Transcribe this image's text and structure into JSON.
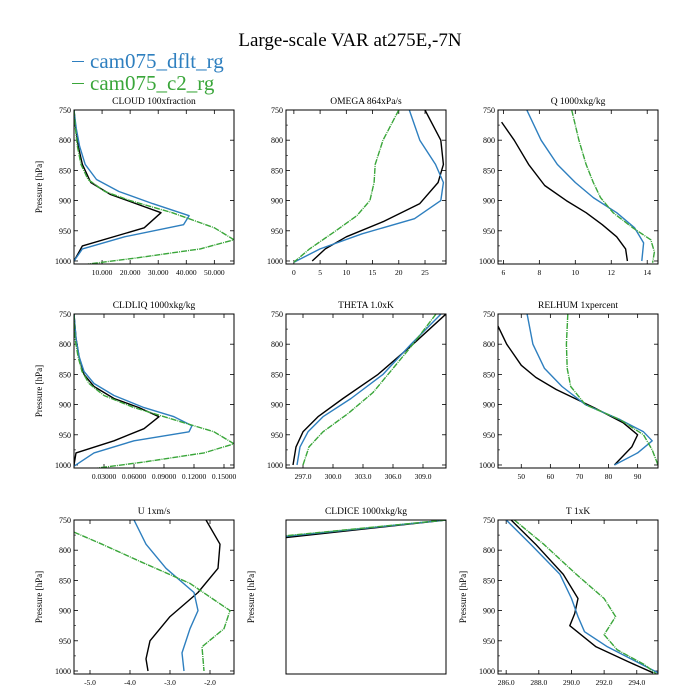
{
  "title": "Large-scale VAR at275E,-7N",
  "legend": [
    {
      "name": "cam075_dflt_rg",
      "color": "#2e7fbf"
    },
    {
      "name": "cam075_c2_rg",
      "color": "#3aa63a"
    }
  ],
  "chart_data": [
    {
      "type": "line",
      "title": "CLOUD  100xfraction",
      "xlabel": "",
      "ylabel": "Pressure [hPa]",
      "xlim": [
        0,
        57000
      ],
      "ylim": [
        1005,
        750
      ],
      "grid": false,
      "xticks": [
        10000,
        20000,
        30000,
        40000,
        50000
      ],
      "xticklabels": [
        "10.000",
        "20.000",
        "30.000",
        "40.000",
        "50.000"
      ],
      "yticks": [
        750,
        800,
        850,
        900,
        950,
        1000
      ],
      "series": [
        {
          "name": "",
          "color": "#000000",
          "x": [
            0,
            600,
            1500,
            3000,
            6000,
            13000,
            22000,
            31000,
            25000,
            3000,
            0
          ],
          "y": [
            750,
            780,
            810,
            840,
            870,
            890,
            905,
            920,
            945,
            975,
            1000
          ]
        },
        {
          "name": "cam075_dflt_rg",
          "color": "#2e7fbf",
          "x": [
            0,
            800,
            2000,
            4000,
            8000,
            16000,
            28000,
            41000,
            39000,
            18000,
            3000,
            0
          ],
          "y": [
            750,
            780,
            810,
            840,
            865,
            885,
            905,
            925,
            940,
            960,
            980,
            1000
          ]
        },
        {
          "name": "cam075_c2_rg",
          "color": "#3aa63a",
          "x": [
            0,
            500,
            1200,
            2500,
            5000,
            11000,
            20000,
            35000,
            50000,
            57000,
            45000,
            22000,
            5000
          ],
          "y": [
            750,
            780,
            810,
            840,
            865,
            885,
            900,
            920,
            945,
            965,
            980,
            995,
            1005
          ]
        }
      ]
    },
    {
      "type": "line",
      "title": "OMEGA  864xPa/s",
      "xlabel": "",
      "ylabel": "",
      "xlim": [
        -1.5,
        29
      ],
      "ylim": [
        1005,
        750
      ],
      "grid": false,
      "xticks": [
        0,
        5,
        10,
        15,
        20,
        25
      ],
      "xticklabels": [
        "0",
        "5",
        "10",
        "15",
        "20",
        "25"
      ],
      "yticks": [
        750,
        800,
        850,
        900,
        950,
        1000
      ],
      "series": [
        {
          "name": "",
          "color": "#000000",
          "x": [
            25,
            28,
            28.5,
            27.5,
            24,
            17,
            10,
            6,
            3.5
          ],
          "y": [
            750,
            800,
            840,
            870,
            905,
            935,
            960,
            980,
            1000
          ]
        },
        {
          "name": "cam075_dflt_rg",
          "color": "#2e7fbf",
          "x": [
            22,
            24,
            27,
            28.5,
            28,
            23,
            13,
            5,
            0
          ],
          "y": [
            750,
            800,
            840,
            870,
            900,
            930,
            955,
            980,
            1002
          ]
        },
        {
          "name": "cam075_c2_rg",
          "color": "#3aa63a",
          "x": [
            20,
            17,
            15.5,
            15.3,
            14.5,
            12,
            8,
            3,
            0
          ],
          "y": [
            750,
            800,
            840,
            870,
            900,
            925,
            950,
            980,
            1002
          ]
        }
      ]
    },
    {
      "type": "line",
      "title": "Q  1000xkg/kg",
      "xlabel": "",
      "ylabel": "",
      "xlim": [
        5.7,
        14.6
      ],
      "ylim": [
        1005,
        750
      ],
      "grid": false,
      "xticks": [
        6,
        8,
        10,
        12,
        14
      ],
      "xticklabels": [
        "6",
        "8",
        "10",
        "12",
        "14"
      ],
      "yticks": [
        750,
        800,
        850,
        900,
        950,
        1000
      ],
      "series": [
        {
          "name": "",
          "color": "#000000",
          "x": [
            5.9,
            6.6,
            7.4,
            8.3,
            9.5,
            10.6,
            11.5,
            12.3,
            12.8,
            12.9
          ],
          "y": [
            770,
            800,
            840,
            875,
            900,
            920,
            940,
            960,
            980,
            1000
          ]
        },
        {
          "name": "cam075_dflt_rg",
          "color": "#2e7fbf",
          "x": [
            7.3,
            8.1,
            9.0,
            10.0,
            11.0,
            12.3,
            13.3,
            13.8,
            13.7
          ],
          "y": [
            750,
            800,
            840,
            870,
            895,
            920,
            945,
            970,
            1000
          ]
        },
        {
          "name": "cam075_c2_rg",
          "color": "#3aa63a",
          "x": [
            9.8,
            10.2,
            10.6,
            11.0,
            11.4,
            12.1,
            13.2,
            14.2,
            14.4,
            14.3
          ],
          "y": [
            750,
            800,
            840,
            870,
            895,
            920,
            945,
            965,
            985,
            1003
          ]
        }
      ]
    },
    {
      "type": "line",
      "title": "CLDLIQ  1000xkg/kg",
      "xlabel": "",
      "ylabel": "Pressure [hPa]",
      "xlim": [
        0,
        0.16
      ],
      "ylim": [
        1005,
        750
      ],
      "grid": false,
      "xticks": [
        0.03,
        0.06,
        0.09,
        0.12,
        0.15
      ],
      "xticklabels": [
        "0.03000",
        "0.06000",
        "0.09000",
        "0.12000",
        "0.15000"
      ],
      "yticks": [
        750,
        800,
        850,
        900,
        950,
        1000
      ],
      "series": [
        {
          "name": "",
          "color": "#000000",
          "x": [
            0,
            0.002,
            0.005,
            0.01,
            0.02,
            0.04,
            0.065,
            0.085,
            0.07,
            0.04,
            0.002,
            0
          ],
          "y": [
            750,
            790,
            820,
            850,
            870,
            890,
            905,
            920,
            940,
            960,
            980,
            1000
          ]
        },
        {
          "name": "cam075_dflt_rg",
          "color": "#2e7fbf",
          "x": [
            0,
            0.002,
            0.005,
            0.01,
            0.02,
            0.04,
            0.07,
            0.1,
            0.118,
            0.115,
            0.06,
            0.02,
            0
          ],
          "y": [
            750,
            790,
            820,
            845,
            865,
            885,
            905,
            920,
            935,
            945,
            960,
            980,
            1002
          ]
        },
        {
          "name": "cam075_c2_rg",
          "color": "#3aa63a",
          "x": [
            0,
            0.001,
            0.004,
            0.008,
            0.015,
            0.03,
            0.06,
            0.1,
            0.14,
            0.16,
            0.13,
            0.07,
            0.015
          ],
          "y": [
            750,
            790,
            820,
            845,
            865,
            885,
            905,
            925,
            945,
            965,
            980,
            995,
            1007
          ]
        }
      ]
    },
    {
      "type": "line",
      "title": "THETA  1.0xK",
      "xlabel": "",
      "ylabel": "",
      "xlim": [
        295.3,
        311.3
      ],
      "ylim": [
        1005,
        750
      ],
      "grid": false,
      "xticks": [
        297,
        300,
        303,
        306,
        309
      ],
      "xticklabels": [
        "297.0",
        "300.0",
        "303.0",
        "306.0",
        "309.0"
      ],
      "yticks": [
        750,
        800,
        850,
        900,
        950,
        1000
      ],
      "series": [
        {
          "name": "",
          "color": "#000000",
          "x": [
            311.3,
            308.0,
            304.5,
            301.0,
            298.5,
            297.0,
            296.3,
            296.0
          ],
          "y": [
            750,
            800,
            850,
            890,
            920,
            945,
            970,
            1000
          ]
        },
        {
          "name": "cam075_dflt_rg",
          "color": "#2e7fbf",
          "x": [
            310.8,
            307.8,
            305.0,
            301.8,
            299.0,
            297.5,
            296.7,
            296.4
          ],
          "y": [
            750,
            800,
            850,
            890,
            920,
            945,
            970,
            1000
          ]
        },
        {
          "name": "cam075_c2_rg",
          "color": "#3aa63a",
          "x": [
            310.3,
            308.0,
            306.0,
            304.0,
            301.5,
            299.0,
            297.6,
            297.0
          ],
          "y": [
            750,
            800,
            840,
            880,
            915,
            945,
            970,
            1000
          ]
        }
      ]
    },
    {
      "type": "line",
      "title": "RELHUM  1xpercent",
      "xlabel": "",
      "ylabel": "",
      "xlim": [
        42,
        97
      ],
      "ylim": [
        1005,
        750
      ],
      "grid": false,
      "xticks": [
        50,
        60,
        70,
        80,
        90
      ],
      "xticklabels": [
        "50",
        "60",
        "70",
        "80",
        "90"
      ],
      "yticks": [
        750,
        800,
        850,
        900,
        950,
        1000
      ],
      "series": [
        {
          "name": "",
          "color": "#000000",
          "x": [
            42,
            45,
            50,
            55,
            62,
            75,
            85,
            90,
            88,
            82
          ],
          "y": [
            770,
            800,
            835,
            855,
            875,
            905,
            930,
            950,
            970,
            1000
          ]
        },
        {
          "name": "cam075_dflt_rg",
          "color": "#2e7fbf",
          "x": [
            52,
            54,
            58,
            64,
            72,
            84,
            92,
            95,
            90,
            82
          ],
          "y": [
            750,
            800,
            840,
            870,
            900,
            925,
            945,
            960,
            980,
            1000
          ]
        },
        {
          "name": "cam075_c2_rg",
          "color": "#3aa63a",
          "x": [
            66,
            65.5,
            65.8,
            67,
            72,
            84,
            92,
            95,
            97
          ],
          "y": [
            750,
            800,
            840,
            870,
            900,
            925,
            950,
            975,
            1000
          ]
        }
      ]
    },
    {
      "type": "line",
      "title": "U  1xm/s",
      "xlabel": "",
      "ylabel": "Pressure [hPa]",
      "xlim": [
        -5.4,
        -1.4
      ],
      "ylim": [
        1005,
        750
      ],
      "grid": false,
      "xticks": [
        -5,
        -4,
        -3,
        -2
      ],
      "xticklabels": [
        "-5.0",
        "-4.0",
        "-3.0",
        "-2.0"
      ],
      "yticks": [
        750,
        800,
        850,
        900,
        950,
        1000
      ],
      "series": [
        {
          "name": "",
          "color": "#000000",
          "x": [
            -2.1,
            -1.75,
            -1.8,
            -2.3,
            -3.0,
            -3.5,
            -3.6,
            -3.55
          ],
          "y": [
            750,
            790,
            830,
            870,
            910,
            950,
            980,
            1000
          ]
        },
        {
          "name": "cam075_dflt_rg",
          "color": "#2e7fbf",
          "x": [
            -3.9,
            -3.6,
            -3.1,
            -2.4,
            -2.3,
            -2.5,
            -2.7,
            -2.65
          ],
          "y": [
            750,
            790,
            830,
            870,
            900,
            930,
            970,
            1000
          ]
        },
        {
          "name": "cam075_c2_rg",
          "color": "#3aa63a",
          "x": [
            -5.4,
            -4.7,
            -3.7,
            -2.5,
            -1.5,
            -1.65,
            -2.2,
            -2.15
          ],
          "y": [
            770,
            790,
            820,
            855,
            900,
            930,
            960,
            1000
          ]
        }
      ]
    },
    {
      "type": "line",
      "title": "CLDICE  1000xkg/kg",
      "xlabel": "",
      "ylabel": "Pressure [hPa]",
      "xlim": [
        0,
        1
      ],
      "ylim": [
        1005,
        750
      ],
      "grid": false,
      "xticks": [],
      "xticklabels": [],
      "yticks": [],
      "series": [
        {
          "name": "",
          "color": "#000000",
          "x": [
            1,
            0
          ],
          "y": [
            750,
            779
          ]
        },
        {
          "name": "cam075_dflt_rg",
          "color": "#2e7fbf",
          "x": [
            1,
            0
          ],
          "y": [
            750,
            777
          ]
        },
        {
          "name": "cam075_c2_rg",
          "color": "#3aa63a",
          "x": [
            1,
            0
          ],
          "y": [
            750,
            776
          ]
        }
      ]
    },
    {
      "type": "line",
      "title": "T  1xK",
      "xlabel": "",
      "ylabel": "Pressure [hPa]",
      "xlim": [
        285.5,
        295.3
      ],
      "ylim": [
        1005,
        750
      ],
      "grid": false,
      "xticks": [
        286,
        288,
        290,
        292,
        294
      ],
      "xticklabels": [
        "286.0",
        "288.0",
        "290.0",
        "292.0",
        "294.0"
      ],
      "yticks": [
        750,
        800,
        850,
        900,
        950,
        1000
      ],
      "series": [
        {
          "name": "",
          "color": "#000000",
          "x": [
            286.3,
            287.8,
            289.5,
            290.4,
            290.2,
            289.9,
            291.5,
            293.5,
            295.0
          ],
          "y": [
            750,
            790,
            840,
            880,
            905,
            925,
            960,
            985,
            1003
          ]
        },
        {
          "name": "cam075_dflt_rg",
          "color": "#2e7fbf",
          "x": [
            286.0,
            287.5,
            289.3,
            290.0,
            290.4,
            290.8,
            292.2,
            294.0,
            295.3
          ],
          "y": [
            750,
            790,
            840,
            880,
            910,
            935,
            960,
            985,
            1003
          ]
        },
        {
          "name": "cam075_c2_rg",
          "color": "#3aa63a",
          "x": [
            286.5,
            288.3,
            290.3,
            292.0,
            292.7,
            292.0,
            292.8,
            294.5,
            295.2
          ],
          "y": [
            750,
            790,
            840,
            880,
            910,
            940,
            965,
            990,
            1005
          ]
        }
      ]
    }
  ]
}
